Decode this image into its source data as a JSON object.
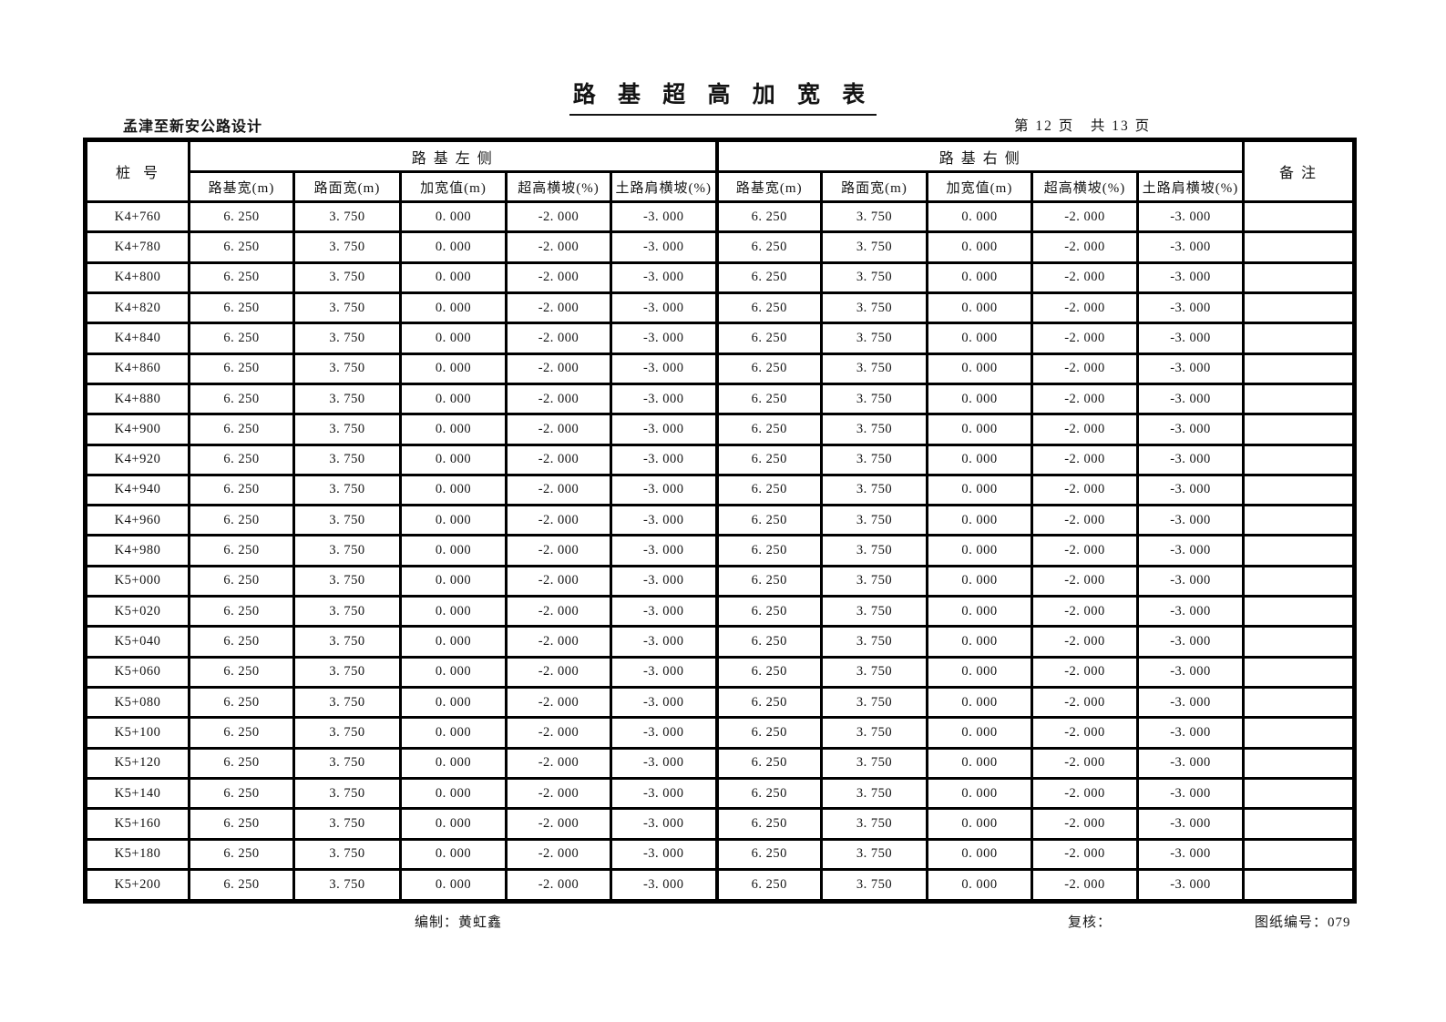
{
  "page": {
    "title": "路 基 超 高 加 宽 表",
    "subtitle": "孟津至新安公路设计",
    "page_indicator": {
      "text": "第 12 页   共 13 页",
      "current_page": 12,
      "total_pages": 13
    }
  },
  "table": {
    "stake_header": "桩  号",
    "left_group_header": "路 基 左 侧",
    "right_group_header": "路 基 右 侧",
    "remark_header": "备 注",
    "sub_headers": [
      "路基宽(m)",
      "路面宽(m)",
      "加宽值(m)",
      "超高横坡(%)",
      "土路肩横坡(%)"
    ],
    "rows": [
      {
        "stake": "K4+760",
        "left": [
          "6. 250",
          "3. 750",
          "0. 000",
          "-2. 000",
          "-3. 000"
        ],
        "right": [
          "6. 250",
          "3. 750",
          "0. 000",
          "-2. 000",
          "-3. 000"
        ],
        "remark": ""
      },
      {
        "stake": "K4+780",
        "left": [
          "6. 250",
          "3. 750",
          "0. 000",
          "-2. 000",
          "-3. 000"
        ],
        "right": [
          "6. 250",
          "3. 750",
          "0. 000",
          "-2. 000",
          "-3. 000"
        ],
        "remark": ""
      },
      {
        "stake": "K4+800",
        "left": [
          "6. 250",
          "3. 750",
          "0. 000",
          "-2. 000",
          "-3. 000"
        ],
        "right": [
          "6. 250",
          "3. 750",
          "0. 000",
          "-2. 000",
          "-3. 000"
        ],
        "remark": ""
      },
      {
        "stake": "K4+820",
        "left": [
          "6. 250",
          "3. 750",
          "0. 000",
          "-2. 000",
          "-3. 000"
        ],
        "right": [
          "6. 250",
          "3. 750",
          "0. 000",
          "-2. 000",
          "-3. 000"
        ],
        "remark": ""
      },
      {
        "stake": "K4+840",
        "left": [
          "6. 250",
          "3. 750",
          "0. 000",
          "-2. 000",
          "-3. 000"
        ],
        "right": [
          "6. 250",
          "3. 750",
          "0. 000",
          "-2. 000",
          "-3. 000"
        ],
        "remark": ""
      },
      {
        "stake": "K4+860",
        "left": [
          "6. 250",
          "3. 750",
          "0. 000",
          "-2. 000",
          "-3. 000"
        ],
        "right": [
          "6. 250",
          "3. 750",
          "0. 000",
          "-2. 000",
          "-3. 000"
        ],
        "remark": ""
      },
      {
        "stake": "K4+880",
        "left": [
          "6. 250",
          "3. 750",
          "0. 000",
          "-2. 000",
          "-3. 000"
        ],
        "right": [
          "6. 250",
          "3. 750",
          "0. 000",
          "-2. 000",
          "-3. 000"
        ],
        "remark": ""
      },
      {
        "stake": "K4+900",
        "left": [
          "6. 250",
          "3. 750",
          "0. 000",
          "-2. 000",
          "-3. 000"
        ],
        "right": [
          "6. 250",
          "3. 750",
          "0. 000",
          "-2. 000",
          "-3. 000"
        ],
        "remark": ""
      },
      {
        "stake": "K4+920",
        "left": [
          "6. 250",
          "3. 750",
          "0. 000",
          "-2. 000",
          "-3. 000"
        ],
        "right": [
          "6. 250",
          "3. 750",
          "0. 000",
          "-2. 000",
          "-3. 000"
        ],
        "remark": ""
      },
      {
        "stake": "K4+940",
        "left": [
          "6. 250",
          "3. 750",
          "0. 000",
          "-2. 000",
          "-3. 000"
        ],
        "right": [
          "6. 250",
          "3. 750",
          "0. 000",
          "-2. 000",
          "-3. 000"
        ],
        "remark": ""
      },
      {
        "stake": "K4+960",
        "left": [
          "6. 250",
          "3. 750",
          "0. 000",
          "-2. 000",
          "-3. 000"
        ],
        "right": [
          "6. 250",
          "3. 750",
          "0. 000",
          "-2. 000",
          "-3. 000"
        ],
        "remark": ""
      },
      {
        "stake": "K4+980",
        "left": [
          "6. 250",
          "3. 750",
          "0. 000",
          "-2. 000",
          "-3. 000"
        ],
        "right": [
          "6. 250",
          "3. 750",
          "0. 000",
          "-2. 000",
          "-3. 000"
        ],
        "remark": ""
      },
      {
        "stake": "K5+000",
        "left": [
          "6. 250",
          "3. 750",
          "0. 000",
          "-2. 000",
          "-3. 000"
        ],
        "right": [
          "6. 250",
          "3. 750",
          "0. 000",
          "-2. 000",
          "-3. 000"
        ],
        "remark": ""
      },
      {
        "stake": "K5+020",
        "left": [
          "6. 250",
          "3. 750",
          "0. 000",
          "-2. 000",
          "-3. 000"
        ],
        "right": [
          "6. 250",
          "3. 750",
          "0. 000",
          "-2. 000",
          "-3. 000"
        ],
        "remark": ""
      },
      {
        "stake": "K5+040",
        "left": [
          "6. 250",
          "3. 750",
          "0. 000",
          "-2. 000",
          "-3. 000"
        ],
        "right": [
          "6. 250",
          "3. 750",
          "0. 000",
          "-2. 000",
          "-3. 000"
        ],
        "remark": ""
      },
      {
        "stake": "K5+060",
        "left": [
          "6. 250",
          "3. 750",
          "0. 000",
          "-2. 000",
          "-3. 000"
        ],
        "right": [
          "6. 250",
          "3. 750",
          "0. 000",
          "-2. 000",
          "-3. 000"
        ],
        "remark": ""
      },
      {
        "stake": "K5+080",
        "left": [
          "6. 250",
          "3. 750",
          "0. 000",
          "-2. 000",
          "-3. 000"
        ],
        "right": [
          "6. 250",
          "3. 750",
          "0. 000",
          "-2. 000",
          "-3. 000"
        ],
        "remark": ""
      },
      {
        "stake": "K5+100",
        "left": [
          "6. 250",
          "3. 750",
          "0. 000",
          "-2. 000",
          "-3. 000"
        ],
        "right": [
          "6. 250",
          "3. 750",
          "0. 000",
          "-2. 000",
          "-3. 000"
        ],
        "remark": ""
      },
      {
        "stake": "K5+120",
        "left": [
          "6. 250",
          "3. 750",
          "0. 000",
          "-2. 000",
          "-3. 000"
        ],
        "right": [
          "6. 250",
          "3. 750",
          "0. 000",
          "-2. 000",
          "-3. 000"
        ],
        "remark": ""
      },
      {
        "stake": "K5+140",
        "left": [
          "6. 250",
          "3. 750",
          "0. 000",
          "-2. 000",
          "-3. 000"
        ],
        "right": [
          "6. 250",
          "3. 750",
          "0. 000",
          "-2. 000",
          "-3. 000"
        ],
        "remark": ""
      },
      {
        "stake": "K5+160",
        "left": [
          "6. 250",
          "3. 750",
          "0. 000",
          "-2. 000",
          "-3. 000"
        ],
        "right": [
          "6. 250",
          "3. 750",
          "0. 000",
          "-2. 000",
          "-3. 000"
        ],
        "remark": ""
      },
      {
        "stake": "K5+180",
        "left": [
          "6. 250",
          "3. 750",
          "0. 000",
          "-2. 000",
          "-3. 000"
        ],
        "right": [
          "6. 250",
          "3. 750",
          "0. 000",
          "-2. 000",
          "-3. 000"
        ],
        "remark": ""
      },
      {
        "stake": "K5+200",
        "left": [
          "6. 250",
          "3. 750",
          "0. 000",
          "-2. 000",
          "-3. 000"
        ],
        "right": [
          "6. 250",
          "3. 750",
          "0. 000",
          "-2. 000",
          "-3. 000"
        ],
        "remark": ""
      }
    ]
  },
  "footer": {
    "prepared_label": "编制：",
    "prepared_by": "黄虹鑫",
    "reviewed_label": "复核：",
    "reviewed_by": "",
    "drawing_no_label": "图纸编号：",
    "drawing_no": "079"
  }
}
